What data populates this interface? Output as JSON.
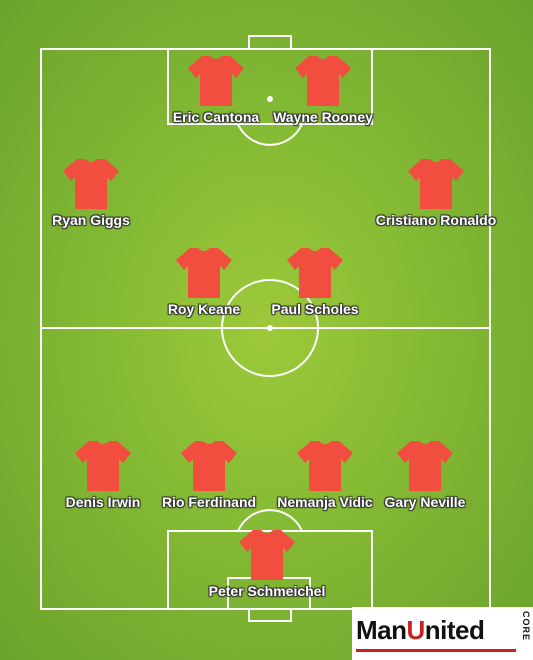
{
  "players": [
    {
      "id": "eric-cantona",
      "name": "Eric Cantona"
    },
    {
      "id": "wayne-rooney",
      "name": "Wayne Rooney"
    },
    {
      "id": "ryan-giggs",
      "name": "Ryan Giggs"
    },
    {
      "id": "cristiano-ronaldo",
      "name": "Cristiano Ronaldo"
    },
    {
      "id": "roy-keane",
      "name": "Roy Keane"
    },
    {
      "id": "paul-scholes",
      "name": "Paul Scholes"
    },
    {
      "id": "denis-irwin",
      "name": "Denis Irwin"
    },
    {
      "id": "rio-ferdinand",
      "name": "Rio Ferdinand"
    },
    {
      "id": "nemanja-vidic",
      "name": "Nemanja Vidic"
    },
    {
      "id": "gary-neville",
      "name": "Gary Neville"
    },
    {
      "id": "peter-schmeichel",
      "name": "Peter Schmeichel"
    }
  ],
  "logo": {
    "text_left": "Man",
    "text_red": "U",
    "text_right": "nited",
    "tag": "CORE"
  },
  "colors": {
    "shirt": "#f24e3f",
    "pitch": "#86bb34",
    "lines": "#ffffff",
    "logo_red": "#cc1f1f"
  },
  "icons": {
    "shirt": "jersey-icon"
  }
}
